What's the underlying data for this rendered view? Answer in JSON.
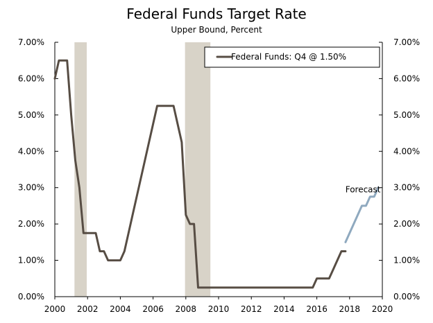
{
  "chart_data": {
    "type": "line",
    "title": "Federal Funds Target Rate",
    "subtitle": "Upper Bound, Percent",
    "xlim": [
      2000,
      2020
    ],
    "ylim": [
      0,
      7
    ],
    "x_ticks": [
      "2000",
      "2002",
      "2004",
      "2006",
      "2008",
      "2010",
      "2012",
      "2014",
      "2016",
      "2018",
      "2020"
    ],
    "y_ticks_left": [
      "0.00%",
      "1.00%",
      "2.00%",
      "3.00%",
      "4.00%",
      "5.00%",
      "6.00%",
      "7.00%"
    ],
    "y_ticks_right": [
      "0.00%",
      "1.00%",
      "2.00%",
      "3.00%",
      "4.00%",
      "5.00%",
      "6.00%",
      "7.00%"
    ],
    "legend": {
      "placement": "top-right",
      "label": "Federal Funds: Q4 @ 1.50%"
    },
    "annotations": [
      {
        "text": "Forecast",
        "x": 2018.75,
        "y": 2.95
      }
    ],
    "recessions": [
      {
        "start": 2001.2,
        "end": 2001.95
      },
      {
        "start": 2007.95,
        "end": 2009.5
      }
    ],
    "colors": {
      "actual": "#574d44",
      "forecast": "#8fa9bf",
      "recession": "#d8d3c8",
      "axis": "#000000"
    },
    "series": [
      {
        "name": "Federal Funds: Q4 @ 1.50%",
        "color": "#574d44",
        "x": [
          2000.0,
          2000.25,
          2000.5,
          2000.75,
          2001.0,
          2001.25,
          2001.5,
          2001.75,
          2002.0,
          2002.25,
          2002.5,
          2002.75,
          2003.0,
          2003.25,
          2003.5,
          2003.75,
          2004.0,
          2004.25,
          2004.5,
          2004.75,
          2005.0,
          2005.25,
          2005.5,
          2005.75,
          2006.0,
          2006.25,
          2006.5,
          2006.75,
          2007.0,
          2007.25,
          2007.5,
          2007.75,
          2008.0,
          2008.25,
          2008.5,
          2008.75,
          2009.0,
          2010.0,
          2011.0,
          2012.0,
          2013.0,
          2014.0,
          2015.0,
          2015.75,
          2016.0,
          2016.25,
          2016.5,
          2016.75,
          2017.0,
          2017.25,
          2017.5,
          2017.75
        ],
        "y": [
          6.0,
          6.5,
          6.5,
          6.5,
          5.0,
          3.75,
          3.0,
          1.75,
          1.75,
          1.75,
          1.75,
          1.25,
          1.25,
          1.0,
          1.0,
          1.0,
          1.0,
          1.25,
          1.75,
          2.25,
          2.75,
          3.25,
          3.75,
          4.25,
          4.75,
          5.25,
          5.25,
          5.25,
          5.25,
          5.25,
          4.75,
          4.25,
          2.25,
          2.0,
          2.0,
          0.25,
          0.25,
          0.25,
          0.25,
          0.25,
          0.25,
          0.25,
          0.25,
          0.25,
          0.5,
          0.5,
          0.5,
          0.5,
          0.75,
          1.0,
          1.25,
          1.25
        ]
      },
      {
        "name": "Forecast",
        "color": "#8fa9bf",
        "x": [
          2017.75,
          2018.0,
          2018.25,
          2018.5,
          2018.75,
          2019.0,
          2019.25,
          2019.5,
          2019.75
        ],
        "y": [
          1.5,
          1.75,
          2.0,
          2.25,
          2.5,
          2.5,
          2.75,
          2.75,
          3.0
        ]
      }
    ]
  }
}
